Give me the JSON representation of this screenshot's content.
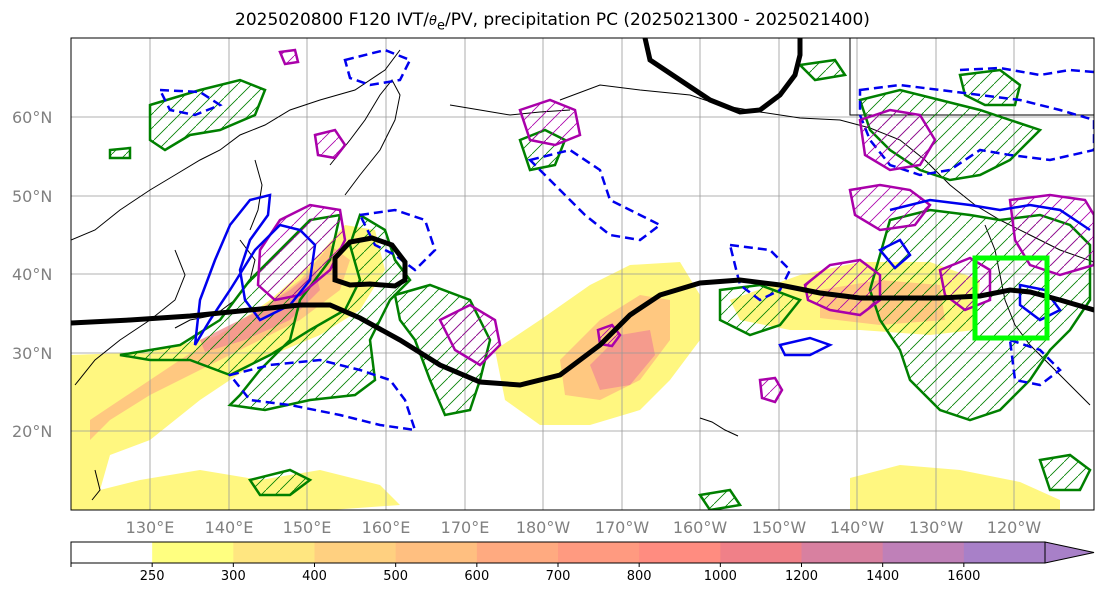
{
  "title": {
    "prefix": "2025020800 F120 IVT/",
    "theta_symbol": "θ",
    "theta_sub": "e",
    "suffix": "/PV, precipitation PC (2025021300 - 2025021400)"
  },
  "lat_labels": [
    "60°N",
    "50°N",
    "40°N",
    "30°N",
    "20°N"
  ],
  "lon_labels": [
    "130°E",
    "140°E",
    "150°E",
    "160°E",
    "170°E",
    "180°W",
    "170°W",
    "160°W",
    "150°W",
    "140°W",
    "130°W",
    "120°W"
  ],
  "colorbar": {
    "levels": [
      "250",
      "300",
      "400",
      "500",
      "600",
      "700",
      "800",
      "1000",
      "1200",
      "1400",
      "1600"
    ],
    "colors": [
      "#ffffff",
      "#ffff80",
      "#ffe680",
      "#ffd080",
      "#ffbf80",
      "#ffaa80",
      "#ff9a80",
      "#ff8c80",
      "#f08088",
      "#d880a0",
      "#bf80b8",
      "#a880c8"
    ]
  },
  "colors": {
    "ivt_fill_low": "#fff780",
    "ivt_fill_mid": "#ffc880",
    "ivt_fill_high": "#f39090",
    "theta_e_contour": "#000000",
    "pv_contour": "#aa00aa",
    "precip_pos": "#008000",
    "precip_neg": "#0000ee",
    "region_box": "#00ff00"
  }
}
